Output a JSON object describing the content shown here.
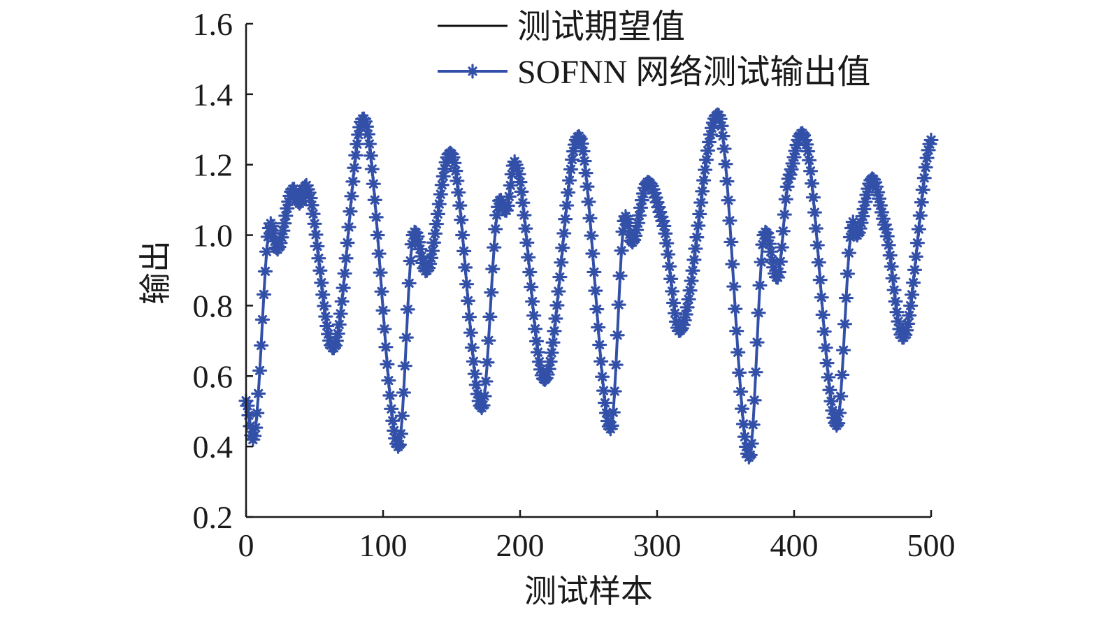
{
  "chart_data": {
    "type": "line",
    "title": "",
    "xlabel": "测试样本",
    "ylabel": "输出",
    "xlim": [
      0,
      500
    ],
    "ylim": [
      0.2,
      1.6
    ],
    "xticks": [
      "0",
      "100",
      "200",
      "300",
      "400",
      "500"
    ],
    "yticks": [
      "0.2",
      "0.4",
      "0.6",
      "0.8",
      "1.0",
      "1.2",
      "1.4",
      "1.6"
    ],
    "grid": false,
    "legend_position": "top-center",
    "series": [
      {
        "name": "测试期望值",
        "color": "#111111",
        "marker": "none"
      },
      {
        "name": "SOFNN 网络测试输出值",
        "color": "#3350a8",
        "marker": "star"
      }
    ],
    "x": [
      0,
      6,
      17,
      23,
      34,
      39,
      45,
      64,
      86,
      111,
      122,
      132,
      150,
      172,
      184,
      190,
      197,
      218,
      243,
      266,
      276,
      282,
      293,
      304,
      317,
      345,
      367,
      378,
      388,
      396,
      408,
      431,
      442,
      446,
      457,
      466,
      480,
      500
    ],
    "y": [
      0.53,
      0.43,
      1.02,
      0.96,
      1.13,
      1.09,
      1.13,
      0.68,
      1.33,
      0.4,
      1.0,
      0.9,
      1.23,
      0.51,
      1.08,
      1.07,
      1.2,
      0.59,
      1.28,
      0.45,
      1.04,
      0.98,
      1.15,
      1.04,
      0.73,
      1.34,
      0.37,
      1.0,
      0.88,
      1.16,
      1.27,
      0.46,
      1.02,
      1.0,
      1.16,
      1.03,
      0.71,
      1.27
    ]
  }
}
